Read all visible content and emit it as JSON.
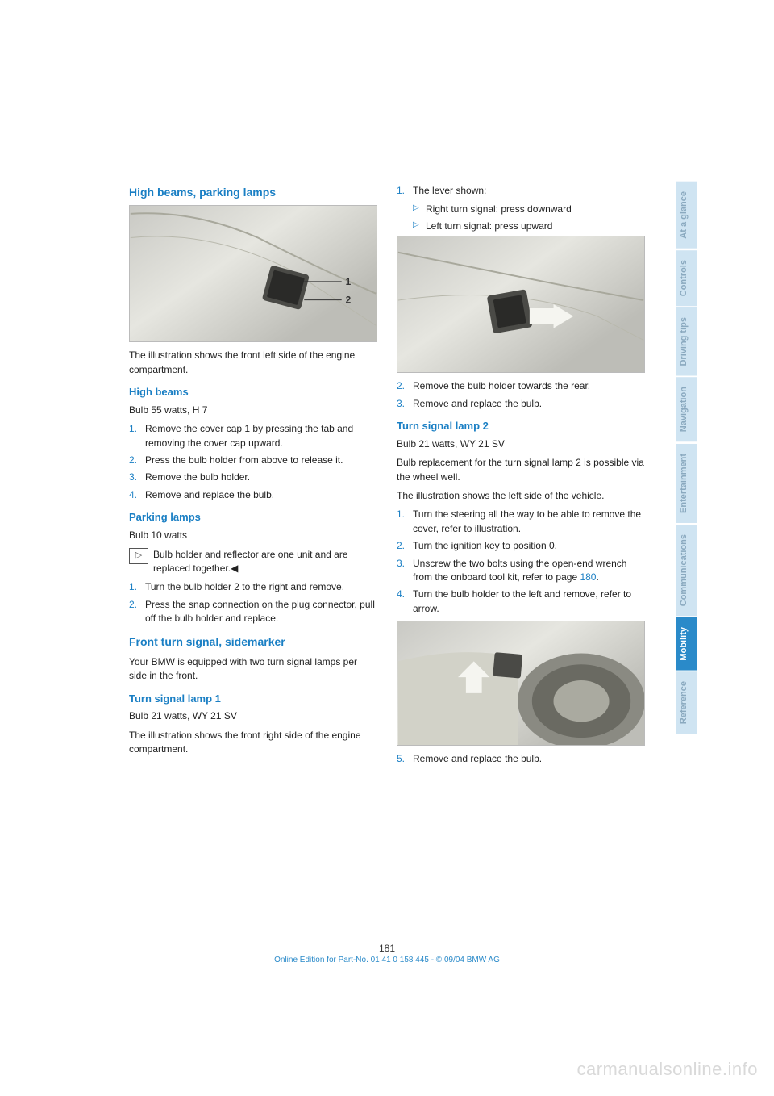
{
  "left": {
    "heading": "High beams, parking lamps",
    "caption": "The illustration shows the front left side of the engine compartment.",
    "highbeams": {
      "title": "High beams",
      "spec": "Bulb 55 watts, H 7",
      "steps": [
        {
          "n": "1.",
          "t": "Remove the cover cap 1 by pressing the tab and removing the cover cap upward."
        },
        {
          "n": "2.",
          "t": "Press the bulb holder from above to release it."
        },
        {
          "n": "3.",
          "t": "Remove the bulb holder."
        },
        {
          "n": "4.",
          "t": "Remove and replace the bulb."
        }
      ]
    },
    "parking": {
      "title": "Parking lamps",
      "spec": "Bulb 10 watts",
      "note": "Bulb holder and reflector are one unit and are replaced together.◀",
      "steps": [
        {
          "n": "1.",
          "t": "Turn the bulb holder 2 to the right and remove."
        },
        {
          "n": "2.",
          "t": "Press the snap connection on the plug connector, pull off the bulb holder and replace."
        }
      ]
    },
    "frontturn": {
      "title": "Front turn signal, sidemarker",
      "intro": "Your BMW is equipped with two turn signal lamps per side in the front.",
      "lamp1title": "Turn signal lamp 1",
      "lamp1spec": "Bulb 21 watts, WY 21 SV",
      "lamp1text": "The illustration shows the front right side of the engine compartment."
    }
  },
  "right": {
    "step1": {
      "n": "1.",
      "t": "The lever shown:"
    },
    "sub": [
      "Right turn signal: press downward",
      "Left turn signal: press upward"
    ],
    "steps_a": [
      {
        "n": "2.",
        "t": "Remove the bulb holder towards the rear."
      },
      {
        "n": "3.",
        "t": "Remove and replace the bulb."
      }
    ],
    "lamp2": {
      "title": "Turn signal lamp 2",
      "spec": "Bulb 21 watts, WY 21 SV",
      "p1": "Bulb replacement for the turn signal lamp 2 is possible via the wheel well.",
      "p2": "The illustration shows the left side of the vehicle.",
      "steps": [
        {
          "n": "1.",
          "t": "Turn the steering all the way to be able to remove the cover, refer to illustration."
        },
        {
          "n": "2.",
          "t": "Turn the ignition key to position 0."
        },
        {
          "n": "3.",
          "t": "Unscrew the two bolts using the open-end wrench from the onboard tool kit, refer to page ",
          "link": "180",
          "after": "."
        },
        {
          "n": "4.",
          "t": "Turn the bulb holder to the left and remove, refer to arrow."
        }
      ],
      "step5": {
        "n": "5.",
        "t": "Remove and replace the bulb."
      }
    }
  },
  "tabs": [
    {
      "label": "At a glance",
      "active": false
    },
    {
      "label": "Controls",
      "active": false
    },
    {
      "label": "Driving tips",
      "active": false
    },
    {
      "label": "Navigation",
      "active": false
    },
    {
      "label": "Entertainment",
      "active": false
    },
    {
      "label": "Communications",
      "active": false
    },
    {
      "label": "Mobility",
      "active": true
    },
    {
      "label": "Reference",
      "active": false
    }
  ],
  "footer": {
    "page": "181",
    "line": "Online Edition for Part-No. 01 41 0 158 445 - © 09/04 BMW AG"
  },
  "watermark": "carmanualsonline.info"
}
